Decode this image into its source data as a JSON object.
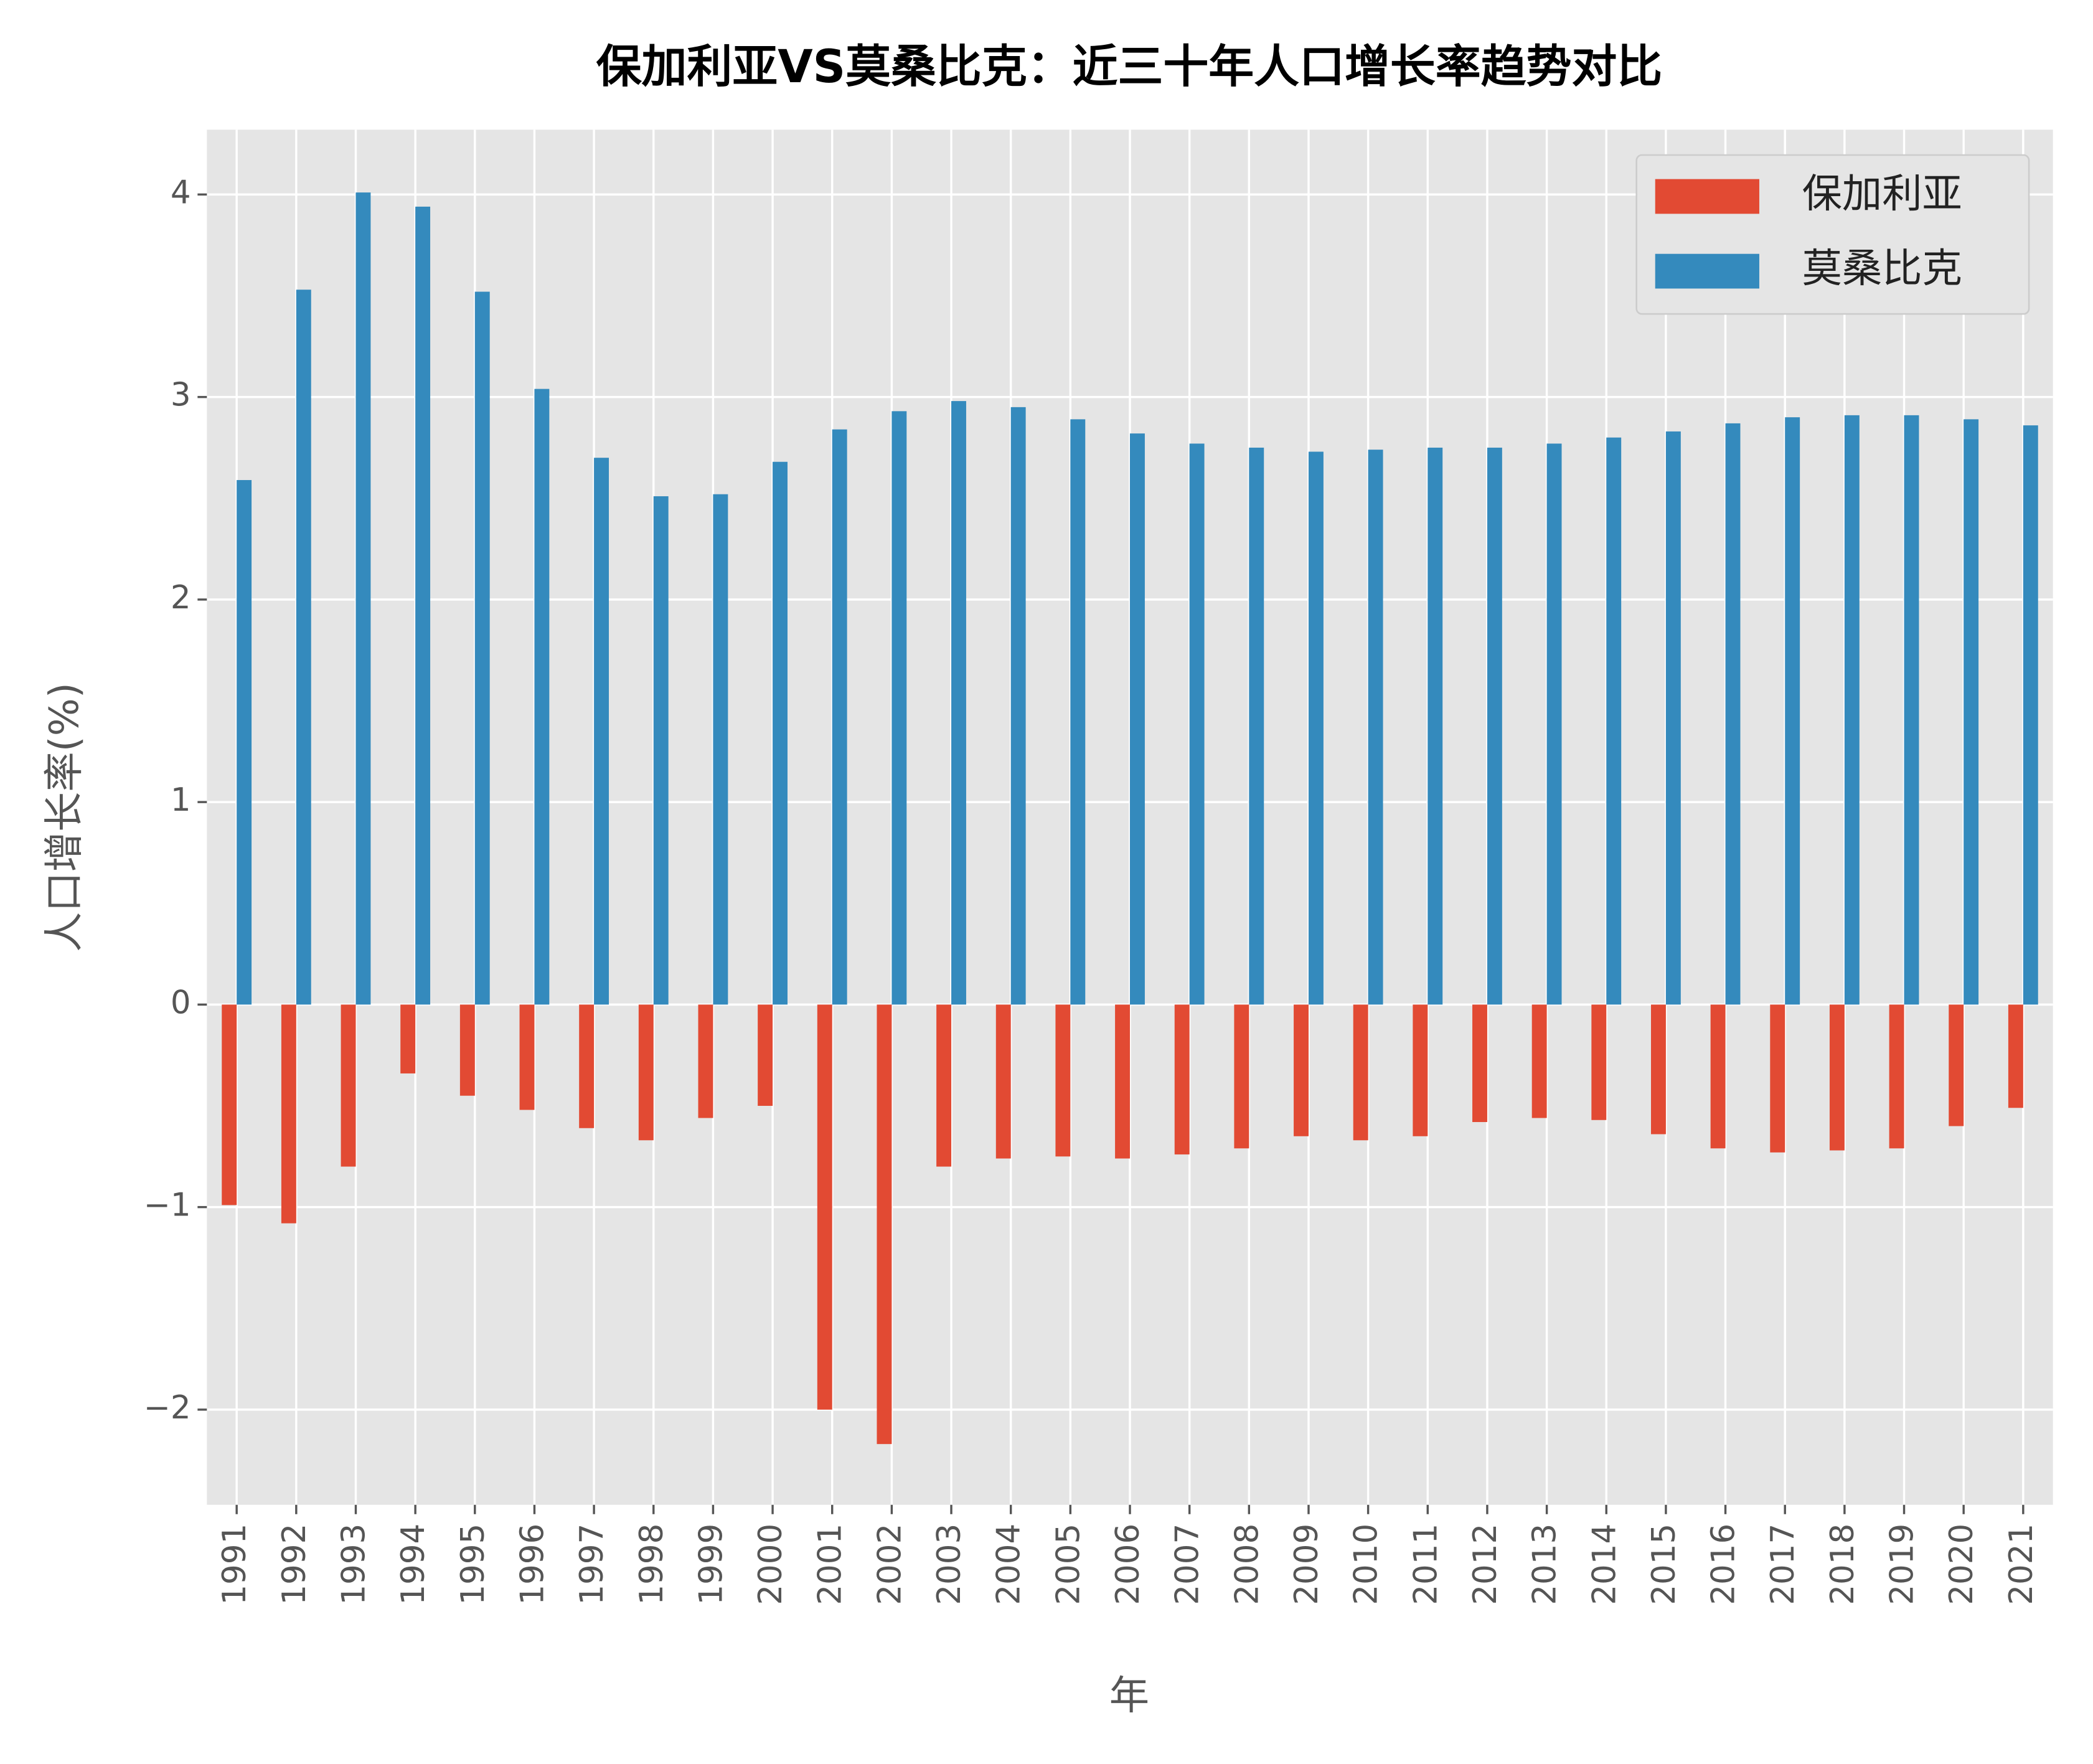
{
  "chart_data": {
    "type": "bar",
    "title": "保加利亚VS莫桑比克：近三十年人口增长率趋势对比",
    "x_label": "年",
    "y_label": "人口增长率(%)",
    "categories": [
      "1991",
      "1992",
      "1993",
      "1994",
      "1995",
      "1996",
      "1997",
      "1998",
      "1999",
      "2000",
      "2001",
      "2002",
      "2003",
      "2004",
      "2005",
      "2006",
      "2007",
      "2008",
      "2009",
      "2010",
      "2011",
      "2012",
      "2013",
      "2014",
      "2015",
      "2016",
      "2017",
      "2018",
      "2019",
      "2020",
      "2021"
    ],
    "series": [
      {
        "name": "保加利亚",
        "color": "#e24a33",
        "values": [
          -0.99,
          -1.08,
          -0.8,
          -0.34,
          -0.45,
          -0.52,
          -0.61,
          -0.67,
          -0.56,
          -0.5,
          -2.0,
          -2.17,
          -0.8,
          -0.76,
          -0.75,
          -0.76,
          -0.74,
          -0.71,
          -0.65,
          -0.67,
          -0.65,
          -0.58,
          -0.56,
          -0.57,
          -0.64,
          -0.71,
          -0.73,
          -0.72,
          -0.71,
          -0.6,
          -0.51
        ]
      },
      {
        "name": "莫桑比克",
        "color": "#348abd",
        "values": [
          2.59,
          3.53,
          4.01,
          3.94,
          3.52,
          3.04,
          2.7,
          2.51,
          2.52,
          2.68,
          2.84,
          2.93,
          2.98,
          2.95,
          2.89,
          2.82,
          2.77,
          2.75,
          2.73,
          2.74,
          2.75,
          2.75,
          2.77,
          2.8,
          2.83,
          2.87,
          2.9,
          2.91,
          2.91,
          2.89,
          2.86
        ]
      }
    ],
    "ylim": [
      -2.47,
      4.32
    ],
    "yticks": [
      {
        "value": -2,
        "label": "−2"
      },
      {
        "value": -1,
        "label": "−1"
      },
      0,
      1,
      2,
      3,
      4
    ],
    "grid": true,
    "legend": "upper right"
  }
}
